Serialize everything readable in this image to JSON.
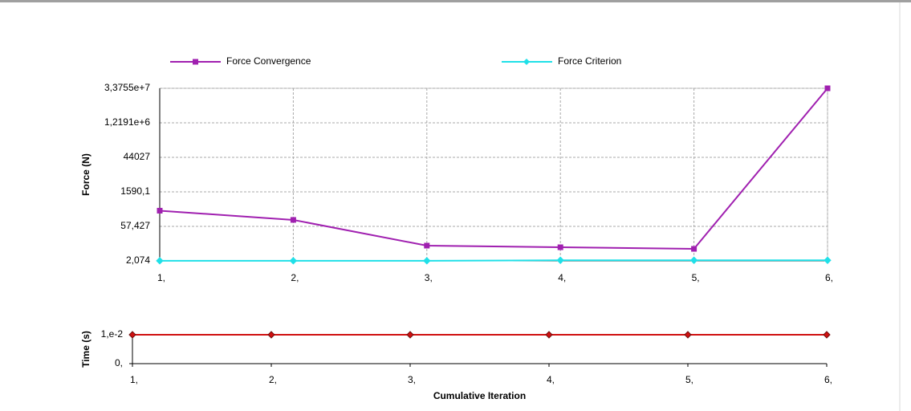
{
  "chart_data": [
    {
      "type": "line",
      "log_y": true,
      "grid": true,
      "legend_position": "top",
      "ylabel": "Force (N)",
      "x": [
        1,
        2,
        3,
        4,
        5,
        6
      ],
      "xlim": [
        1,
        6
      ],
      "xticks": [
        {
          "value": 1,
          "label": "1,"
        },
        {
          "value": 2,
          "label": "2,"
        },
        {
          "value": 3,
          "label": "3,"
        },
        {
          "value": 4,
          "label": "4,"
        },
        {
          "value": 5,
          "label": "5,"
        },
        {
          "value": 6,
          "label": "6,"
        }
      ],
      "ylim": [
        2.074,
        33755000
      ],
      "yticks": [
        {
          "value": 2.074,
          "label": "2,074"
        },
        {
          "value": 57.427,
          "label": "57,427"
        },
        {
          "value": 1590.1,
          "label": "1590,1"
        },
        44027,
        {
          "value": 1219100,
          "label": "1,2191e+6"
        },
        {
          "value": 33755000,
          "label": "3,3755e+7"
        }
      ],
      "series": [
        {
          "name": "Force Convergence",
          "color": "#a020b0",
          "values": [
            260,
            107,
            9.0,
            7.7,
            6.6,
            33755000
          ]
        },
        {
          "name": "Force Criterion",
          "color": "#20e0e8",
          "values": [
            2.1,
            2.1,
            2.1,
            2.2,
            2.2,
            2.2
          ]
        }
      ]
    },
    {
      "type": "line",
      "log_y": false,
      "grid": false,
      "ylabel": "Time (s)",
      "xlabel": "Cumulative Iteration",
      "x": [
        1,
        2,
        3,
        4,
        5,
        6
      ],
      "xlim": [
        1,
        6
      ],
      "xticks": [
        {
          "value": 1,
          "label": "1,"
        },
        {
          "value": 2,
          "label": "2,"
        },
        {
          "value": 3,
          "label": "3,"
        },
        {
          "value": 4,
          "label": "4,"
        },
        {
          "value": 5,
          "label": "5,"
        },
        {
          "value": 6,
          "label": "6,"
        }
      ],
      "ylim": [
        0,
        0.01
      ],
      "yticks": [
        {
          "value": 0,
          "label": "0,"
        },
        {
          "value": 0.01,
          "label": "1,e-2"
        }
      ],
      "series": [
        {
          "color": "#d01010",
          "values": [
            0.01,
            0.01,
            0.01,
            0.01,
            0.01,
            0.01
          ]
        }
      ]
    }
  ]
}
